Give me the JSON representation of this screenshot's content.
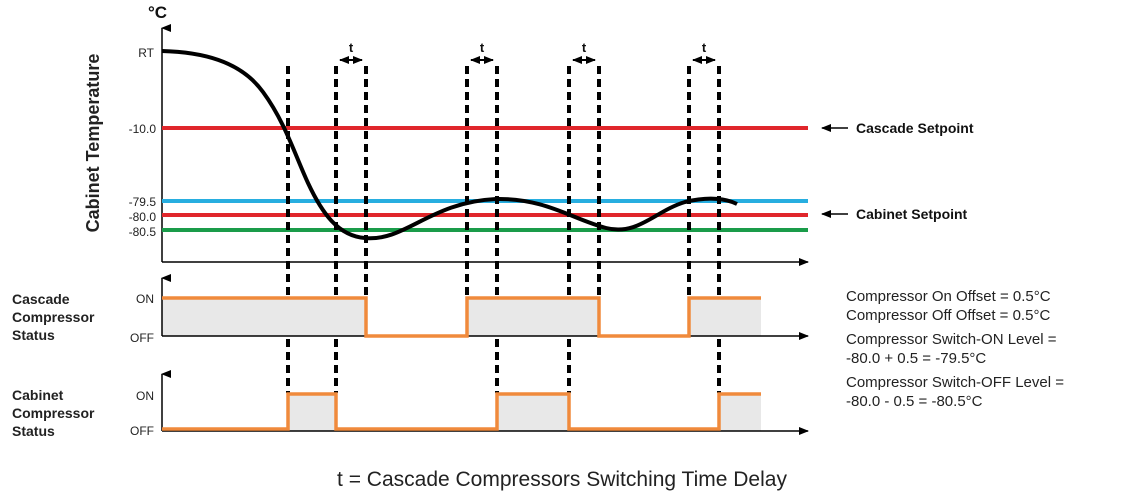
{
  "diagram": {
    "y_unit": "°C",
    "y_axis_title": "Cabinet Temperature",
    "y_ticks": {
      "rt": "RT",
      "cascade": "-10.0",
      "on_level": "-79.5",
      "setpoint": "-80.0",
      "off_level": "-80.5"
    },
    "delay_symbol": "t",
    "callouts": {
      "cascade_setpoint": "Cascade Setpoint",
      "cabinet_setpoint": "Cabinet Setpoint"
    },
    "cascade_status": {
      "label_lines": [
        "Cascade",
        "Compressor",
        "Status"
      ],
      "on": "ON",
      "off": "OFF"
    },
    "cabinet_status": {
      "label_lines": [
        "Cabinet",
        "Compressor",
        "Status"
      ],
      "on": "ON",
      "off": "OFF"
    },
    "notes": [
      "Compressor On Offset = 0.5°C",
      "Compressor Off Offset = 0.5°C",
      "Compressor Switch-ON Level =",
      "-80.0 + 0.5 = -79.5°C",
      "Compressor Switch-OFF Level =",
      "-80.0 - 0.5 = -80.5°C"
    ],
    "footnote": "t = Cascade Compressors Switching Time Delay",
    "colors": {
      "cascade_setpoint_line": "#e0262b",
      "on_level_line": "#27aee0",
      "cabinet_setpoint_line": "#e0262b",
      "off_level_line": "#1a9c4a",
      "temperature_curve": "#000000",
      "status_trace": "#f08a3c",
      "status_fill": "#e8e8e8"
    }
  }
}
